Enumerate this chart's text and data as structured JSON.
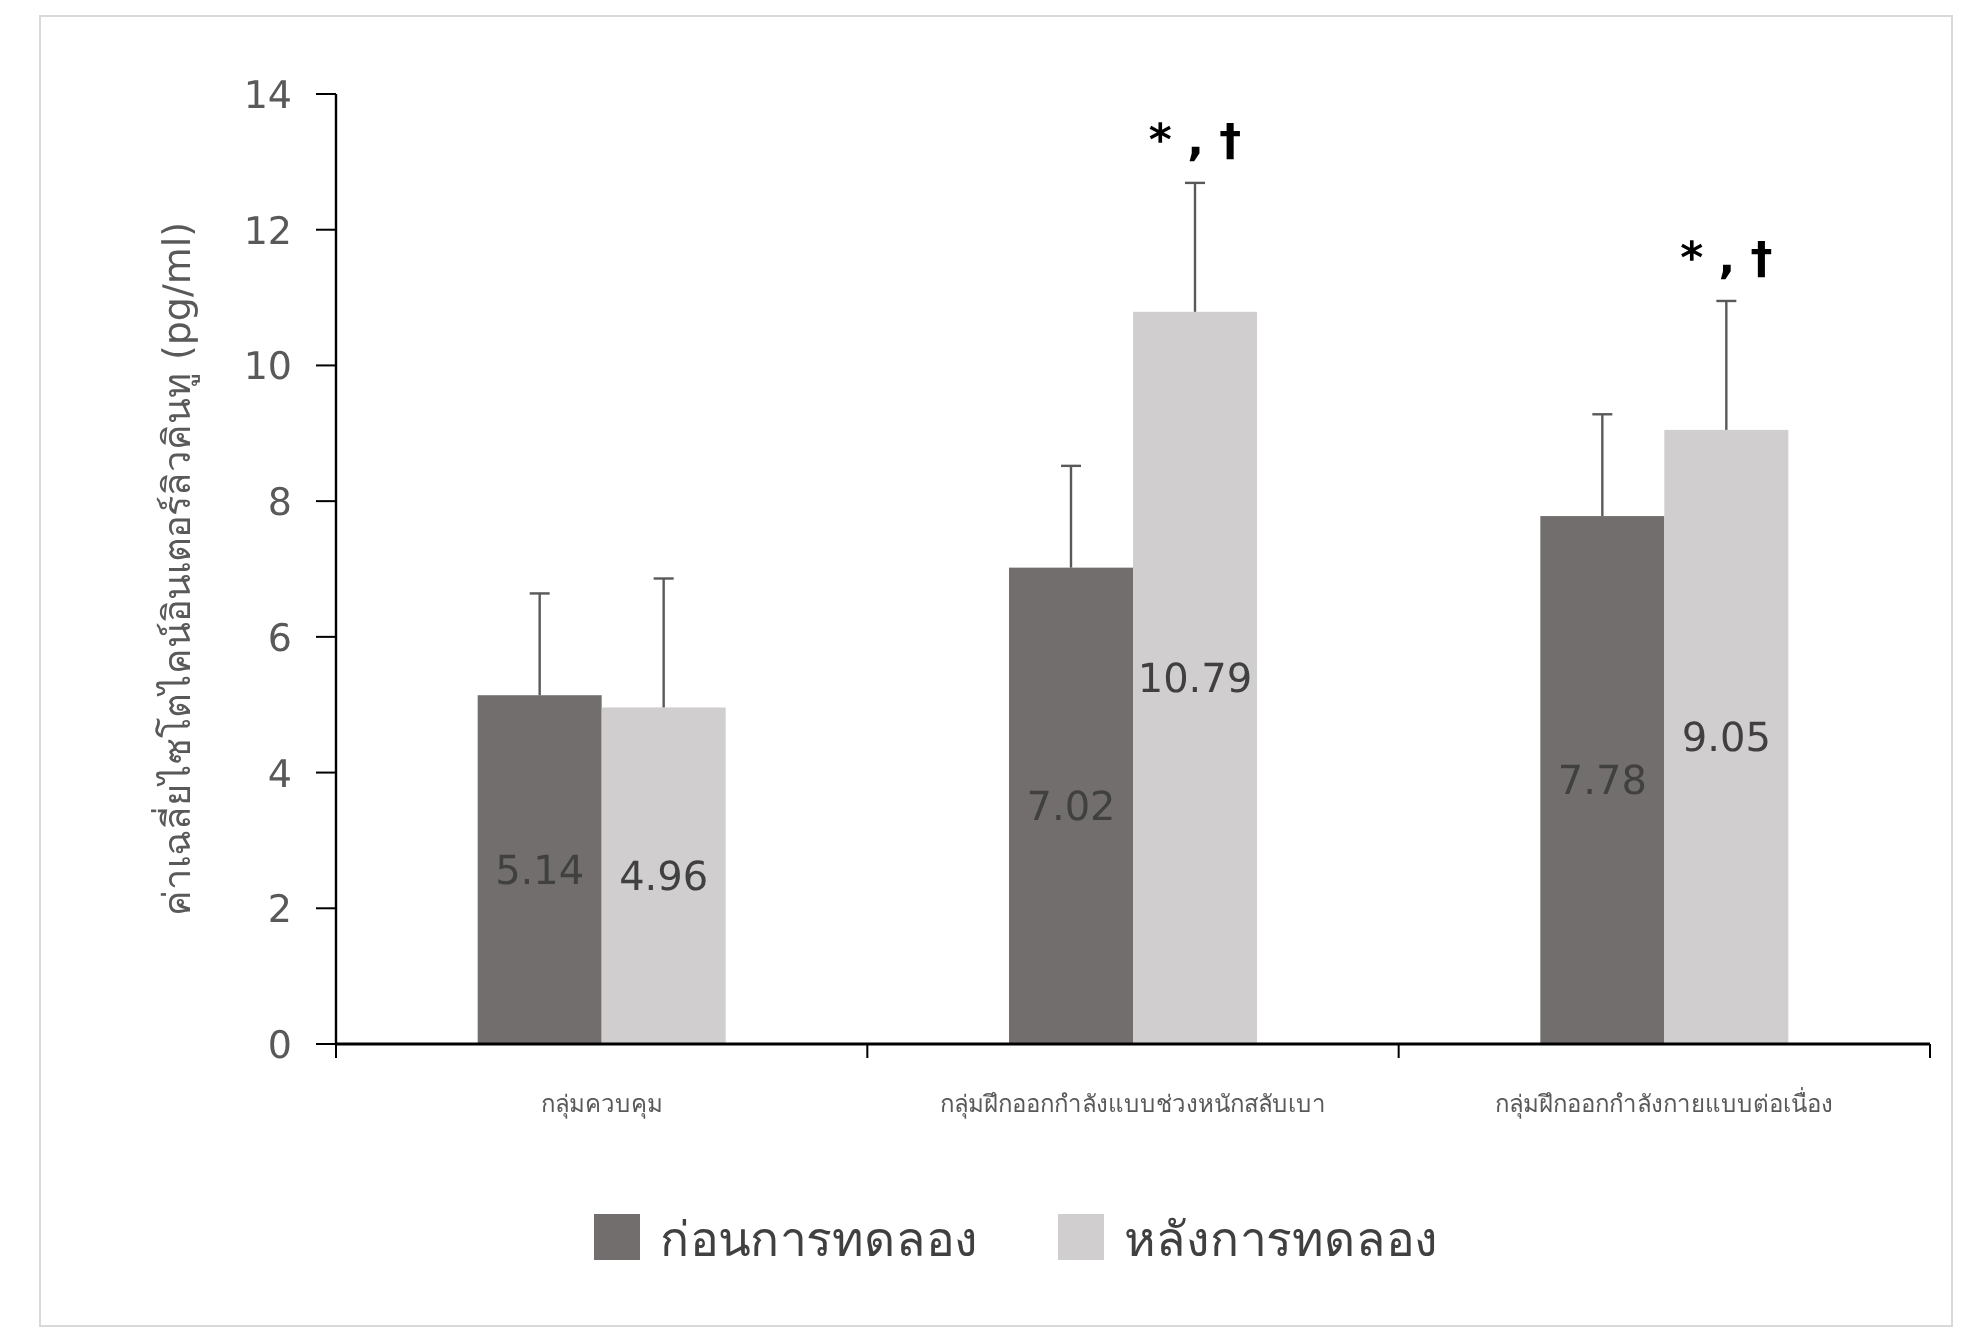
{
  "chart_data": {
    "type": "bar",
    "ylabel": "ค่าเฉลี่ยไซโตไคน์อินเตอร์ลิวคินทู (pg/ml)",
    "categories": [
      "กลุ่มควบคุม",
      "กลุ่มฝึกออกกำลังแบบช่วงหนักสลับเบา",
      "กลุ่มฝึกออกกำลังกายแบบต่อเนื่อง"
    ],
    "series": [
      {
        "name": "ก่อนการทดลอง",
        "color": "#726e6d",
        "values": [
          5.14,
          7.02,
          7.78
        ],
        "errors": [
          1.5,
          1.5,
          1.5
        ]
      },
      {
        "name": "หลังการทดลอง",
        "color": "#d0cecf",
        "values": [
          4.96,
          10.79,
          9.05
        ],
        "errors": [
          1.9,
          1.9,
          1.9
        ]
      }
    ],
    "ylim": [
      0,
      14
    ],
    "yticks": [
      0,
      2,
      4,
      6,
      8,
      10,
      12,
      14
    ],
    "grid": false,
    "legend": "bottom",
    "data_labels": true,
    "annotations": [
      "* , †",
      "* , †"
    ]
  }
}
